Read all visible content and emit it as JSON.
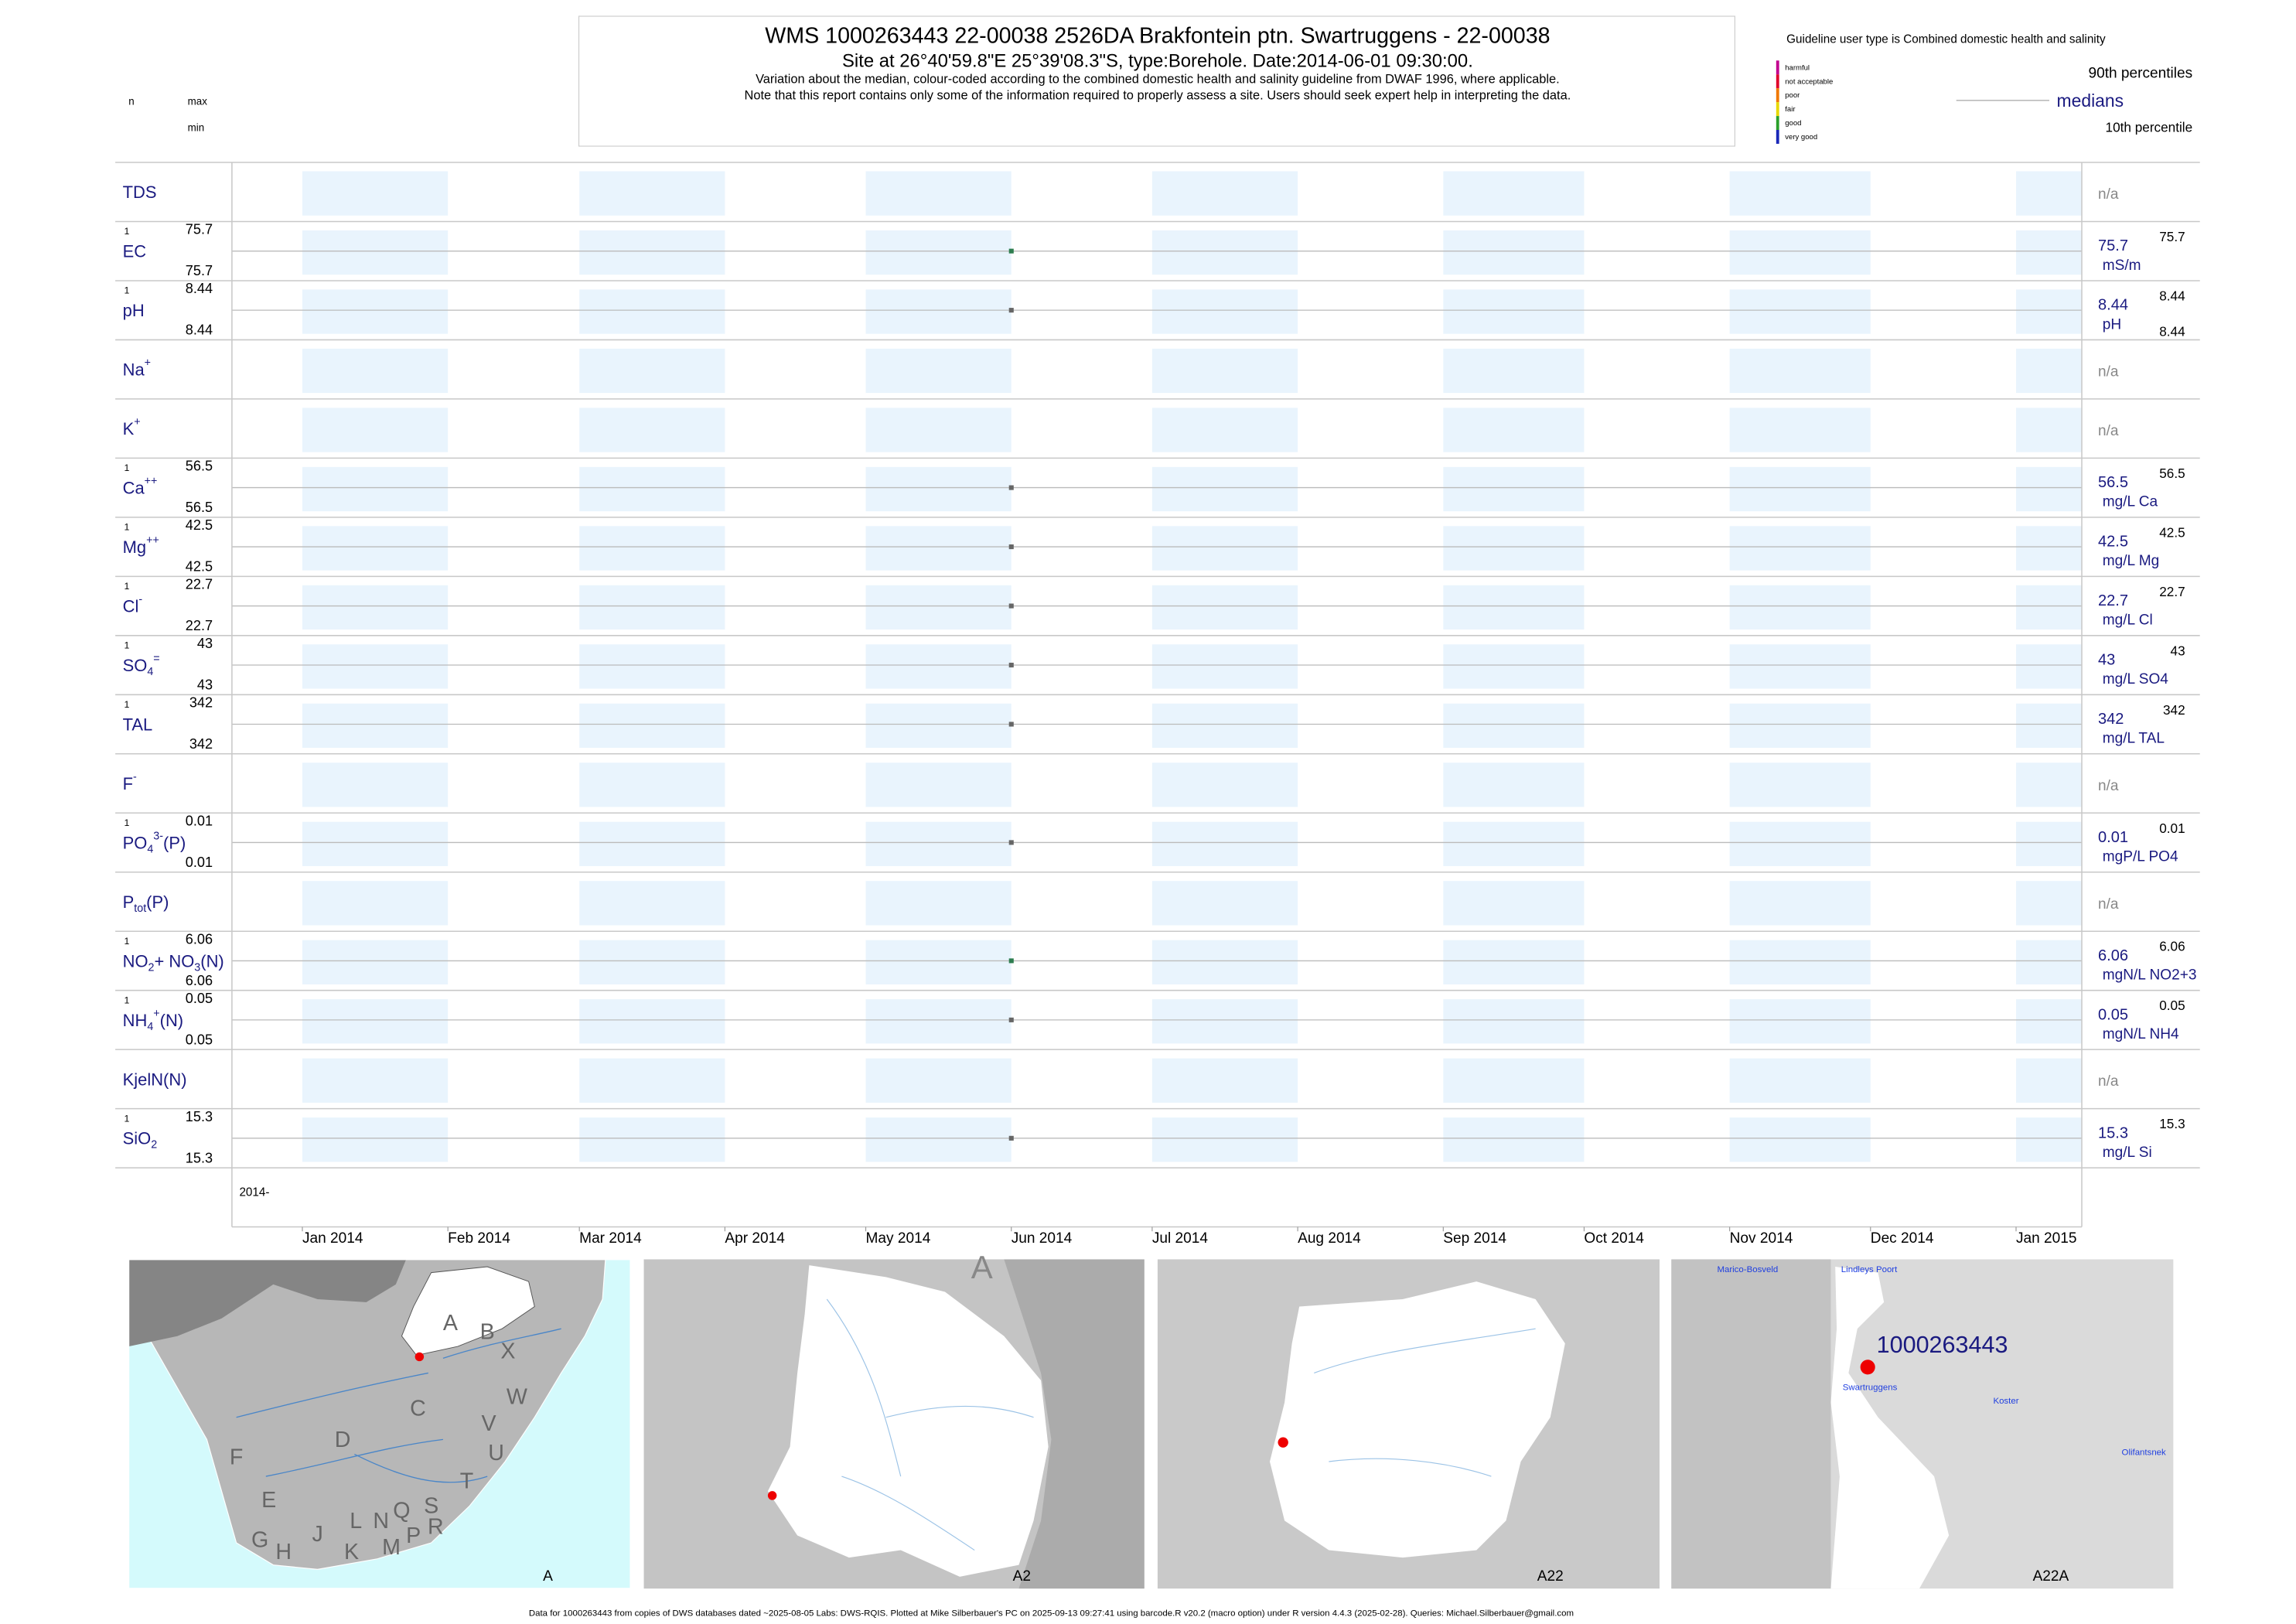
{
  "header": {
    "title": "WMS 1000263443  22-00038 2526DA Brakfontein ptn. Swartruggens - 22-00038",
    "subtitle": "Site at 26°40'59.8\"E 25°39'08.3\"S, type:Borehole. Date:2014-06-01 09:30:00.",
    "note1": "Variation about the median,  colour-coded according to the combined domestic health and salinity guideline from DWAF 1996, where applicable.",
    "note2": "Note that this report contains only some of the information required to properly assess a site. Users should seek expert help in interpreting the data."
  },
  "key": {
    "n": "n",
    "max": "max",
    "min": "min"
  },
  "guideline": {
    "title": "Guideline user type is Combined domestic health and salinity",
    "classes": [
      {
        "name": "harmful",
        "color": "#c2008f"
      },
      {
        "name": "not acceptable",
        "color": "#e0002a"
      },
      {
        "name": "poor",
        "color": "#f07800"
      },
      {
        "name": "fair",
        "color": "#e8d800"
      },
      {
        "name": "good",
        "color": "#2aa02a"
      },
      {
        "name": "very good",
        "color": "#1a28b8"
      }
    ],
    "p90": "90th percentiles",
    "median": "medians",
    "p10": "10th percentile"
  },
  "x": {
    "year_prefix": "2014-",
    "sample_date": "2014-06-01",
    "xlim": [
      "2013-12-17",
      "2015-01-15"
    ],
    "ticks": [
      {
        "value": "2014-01",
        "label": "Jan 2014"
      },
      {
        "value": "2014-02",
        "label": "Feb 2014"
      },
      {
        "value": "2014-03",
        "label": "Mar 2014"
      },
      {
        "value": "2014-04",
        "label": "Apr 2014"
      },
      {
        "value": "2014-05",
        "label": "May 2014"
      },
      {
        "value": "2014-06",
        "label": "Jun 2014"
      },
      {
        "value": "2014-07",
        "label": "Jul 2014"
      },
      {
        "value": "2014-08",
        "label": "Aug 2014"
      },
      {
        "value": "2014-09",
        "label": "Sep 2014"
      },
      {
        "value": "2014-10",
        "label": "Oct 2014"
      },
      {
        "value": "2014-11",
        "label": "Nov 2014"
      },
      {
        "value": "2014-12",
        "label": "Dec 2014"
      },
      {
        "value": "2015-01",
        "label": "Jan 2015"
      }
    ]
  },
  "rows": [
    {
      "label": [
        {
          "t": "TDS"
        }
      ],
      "status": "n/a"
    },
    {
      "label": [
        {
          "t": "EC"
        }
      ],
      "n": 1,
      "max": 75.7,
      "min": 75.7,
      "median": 75.7,
      "unit": "mS/m",
      "p90": 75.7,
      "color": "#2e7d4f"
    },
    {
      "label": [
        {
          "t": "pH"
        }
      ],
      "n": 1,
      "max": 8.44,
      "min": 8.44,
      "median": 8.44,
      "unit": "pH",
      "p90": 8.44,
      "p10": 8.44,
      "color": "#666666"
    },
    {
      "label": [
        {
          "t": "Na"
        },
        {
          "sup": "+"
        }
      ],
      "status": "n/a"
    },
    {
      "label": [
        {
          "t": "K"
        },
        {
          "sup": "+"
        }
      ],
      "status": "n/a"
    },
    {
      "label": [
        {
          "t": "Ca"
        },
        {
          "sup": "++"
        }
      ],
      "n": 1,
      "max": 56.5,
      "min": 56.5,
      "median": 56.5,
      "unit": "mg/L Ca",
      "p90": 56.5,
      "color": "#666666"
    },
    {
      "label": [
        {
          "t": "Mg"
        },
        {
          "sup": "++"
        }
      ],
      "n": 1,
      "max": 42.5,
      "min": 42.5,
      "median": 42.5,
      "unit": "mg/L Mg",
      "p90": 42.5,
      "color": "#666666"
    },
    {
      "label": [
        {
          "t": "Cl"
        },
        {
          "sup": "-"
        }
      ],
      "n": 1,
      "max": 22.7,
      "min": 22.7,
      "median": 22.7,
      "unit": "mg/L Cl",
      "p90": 22.7,
      "color": "#666666"
    },
    {
      "label": [
        {
          "t": "SO"
        },
        {
          "sub": "4"
        },
        {
          "sup": "="
        }
      ],
      "n": 1,
      "max": 43,
      "min": 43,
      "median": 43,
      "unit": "mg/L SO4",
      "p90": 43,
      "color": "#666666"
    },
    {
      "label": [
        {
          "t": "TAL"
        }
      ],
      "n": 1,
      "max": 342,
      "min": 342,
      "median": 342,
      "unit": "mg/L TAL",
      "p90": 342,
      "color": "#666666"
    },
    {
      "label": [
        {
          "t": "F"
        },
        {
          "sup": "-"
        }
      ],
      "status": "n/a"
    },
    {
      "label": [
        {
          "t": "PO"
        },
        {
          "sub": "4"
        },
        {
          "sup": "3-"
        },
        {
          "t": "(P)"
        }
      ],
      "n": 1,
      "max": 0.01,
      "min": 0.01,
      "median": 0.01,
      "unit": "mgP/L PO4",
      "p90": 0.01,
      "color": "#666666"
    },
    {
      "label": [
        {
          "t": "P"
        },
        {
          "sub": "tot"
        },
        {
          "t": "(P)"
        }
      ],
      "status": "n/a"
    },
    {
      "label": [
        {
          "t": "NO"
        },
        {
          "sub": "2"
        },
        {
          "t": "+ NO"
        },
        {
          "sub": "3"
        },
        {
          "t": "(N)"
        }
      ],
      "n": 1,
      "max": 6.06,
      "min": 6.06,
      "median": 6.06,
      "unit": "mgN/L NO2+3",
      "p90": 6.06,
      "color": "#2e7d4f"
    },
    {
      "label": [
        {
          "t": "NH"
        },
        {
          "sub": "4"
        },
        {
          "sup": "+"
        },
        {
          "t": "(N)"
        }
      ],
      "n": 1,
      "max": 0.05,
      "min": 0.05,
      "median": 0.05,
      "unit": "mgN/L NH4",
      "p90": 0.05,
      "color": "#666666"
    },
    {
      "label": [
        {
          "t": "KjelN(N)"
        }
      ],
      "status": "n/a"
    },
    {
      "label": [
        {
          "t": "SiO"
        },
        {
          "sub": "2"
        }
      ],
      "n": 1,
      "max": 15.3,
      "min": 15.3,
      "median": 15.3,
      "unit": "mg/L Si",
      "p90": 15.3,
      "color": "#666666"
    }
  ],
  "maps": [
    {
      "label": "A",
      "letters": [
        "A",
        "B",
        "X",
        "W",
        "C",
        "V",
        "U",
        "D",
        "F",
        "T",
        "E",
        "S",
        "R",
        "Q",
        "N",
        "L",
        "J",
        "K",
        "M",
        "P",
        "G",
        "H"
      ]
    },
    {
      "label": "A2",
      "letters": [
        "A"
      ]
    },
    {
      "label": "A22",
      "letters": []
    },
    {
      "label": "A22A",
      "letters": [],
      "site": "1000263443",
      "towns": [
        "Marico-Bosveld",
        "Lindleys Poort",
        "Swartruggens",
        "Koster",
        "Olifantsnek"
      ]
    }
  ],
  "footer": "Data for 1000263443 from copies of DWS databases dated ~2025-08-05 Labs: DWS-RQIS. Plotted at Mike Silberbauer's PC on 2025-09-13 09:27:41 using barcode.R v20.2 (macro option) under R version 4.4.3 (2025-02-28). Queries: Michael.Silberbauer@gmail.com"
}
